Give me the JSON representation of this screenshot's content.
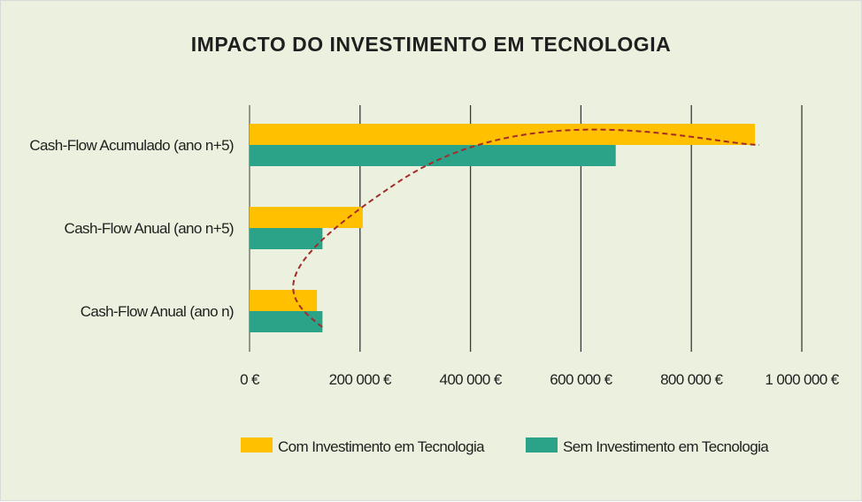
{
  "chart_data": {
    "type": "bar",
    "orientation": "horizontal",
    "title": "IMPACTO DO INVESTIMENTO EM TECNOLOGIA",
    "categories": [
      "Cash-Flow Acumulado (ano n+5)",
      "Cash-Flow Anual (ano n+5)",
      "Cash-Flow Anual (ano n)"
    ],
    "series": [
      {
        "name": "Com Investimento em Tecnologia",
        "values": [
          915000,
          205000,
          122000
        ],
        "color": "#ffc000"
      },
      {
        "name": "Sem Investimento em Tecnologia",
        "values": [
          663000,
          132000,
          132000
        ],
        "color": "#2aa388"
      }
    ],
    "xlim": [
      0,
      1000000
    ],
    "xticks": [
      0,
      200000,
      400000,
      600000,
      800000,
      1000000
    ],
    "xtick_labels": [
      "0 €",
      "200 000 €",
      "400 000 €",
      "600 000 €",
      "800 000 €",
      "1 000 000 €"
    ],
    "grid": "vertical",
    "legend_position": "bottom",
    "trend_line_color": "#a52a2a",
    "background_color": "#ebf1de"
  }
}
